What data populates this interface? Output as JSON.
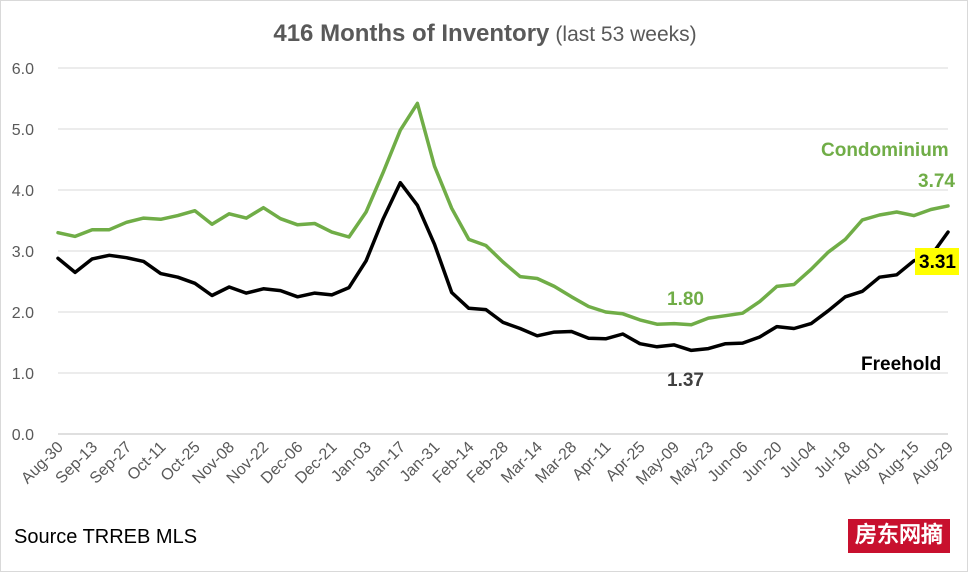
{
  "chart_data": {
    "type": "line",
    "title": "416 Months of Inventory",
    "subtitle": "(last 53 weeks)",
    "source": "Source TRREB MLS",
    "watermark": "房东网摘",
    "ylim": [
      0,
      6
    ],
    "yticks": [
      "0.0",
      "1.0",
      "2.0",
      "3.0",
      "4.0",
      "5.0",
      "6.0"
    ],
    "grid": true,
    "x_labels": [
      "Aug-30",
      "Sep-13",
      "Sep-27",
      "Oct-11",
      "Oct-25",
      "Nov-08",
      "Nov-22",
      "Dec-06",
      "Dec-21",
      "Jan-03",
      "Jan-17",
      "Jan-31",
      "Feb-14",
      "Feb-28",
      "Mar-14",
      "Mar-28",
      "Apr-11",
      "Apr-25",
      "May-09",
      "May-23",
      "Jun-06",
      "Jun-20",
      "Jul-04",
      "Jul-18",
      "Aug-01",
      "Aug-15",
      "Aug-29"
    ],
    "series": [
      {
        "name": "Condominium",
        "color": "#70ad47",
        "values": [
          3.3,
          3.24,
          3.35,
          3.35,
          3.47,
          3.54,
          3.52,
          3.58,
          3.66,
          3.44,
          3.61,
          3.54,
          3.71,
          3.53,
          3.43,
          3.45,
          3.31,
          3.23,
          3.64,
          4.29,
          4.98,
          5.42,
          4.39,
          3.7,
          3.19,
          3.09,
          2.82,
          2.58,
          2.55,
          2.42,
          2.25,
          2.09,
          2.0,
          1.97,
          1.87,
          1.8,
          1.81,
          1.79,
          1.9,
          1.94,
          1.98,
          2.17,
          2.42,
          2.45,
          2.7,
          2.98,
          3.19,
          3.51,
          3.59,
          3.64,
          3.58,
          3.68,
          3.74
        ]
      },
      {
        "name": "Freehold",
        "color": "#000000",
        "values": [
          2.88,
          2.65,
          2.87,
          2.93,
          2.89,
          2.83,
          2.63,
          2.57,
          2.47,
          2.27,
          2.41,
          2.31,
          2.38,
          2.35,
          2.25,
          2.31,
          2.28,
          2.4,
          2.84,
          3.53,
          4.12,
          3.75,
          3.11,
          2.32,
          2.06,
          2.04,
          1.83,
          1.73,
          1.61,
          1.67,
          1.68,
          1.57,
          1.56,
          1.64,
          1.48,
          1.43,
          1.46,
          1.37,
          1.4,
          1.48,
          1.49,
          1.59,
          1.76,
          1.73,
          1.81,
          2.02,
          2.25,
          2.34,
          2.57,
          2.61,
          2.84,
          2.92,
          3.31
        ]
      }
    ],
    "annotations": {
      "condo_name": "Condominium",
      "condo_last": "3.74",
      "condo_min": "1.80",
      "freehold_name": "Freehold",
      "freehold_last": "3.31",
      "freehold_min": "1.37"
    }
  }
}
